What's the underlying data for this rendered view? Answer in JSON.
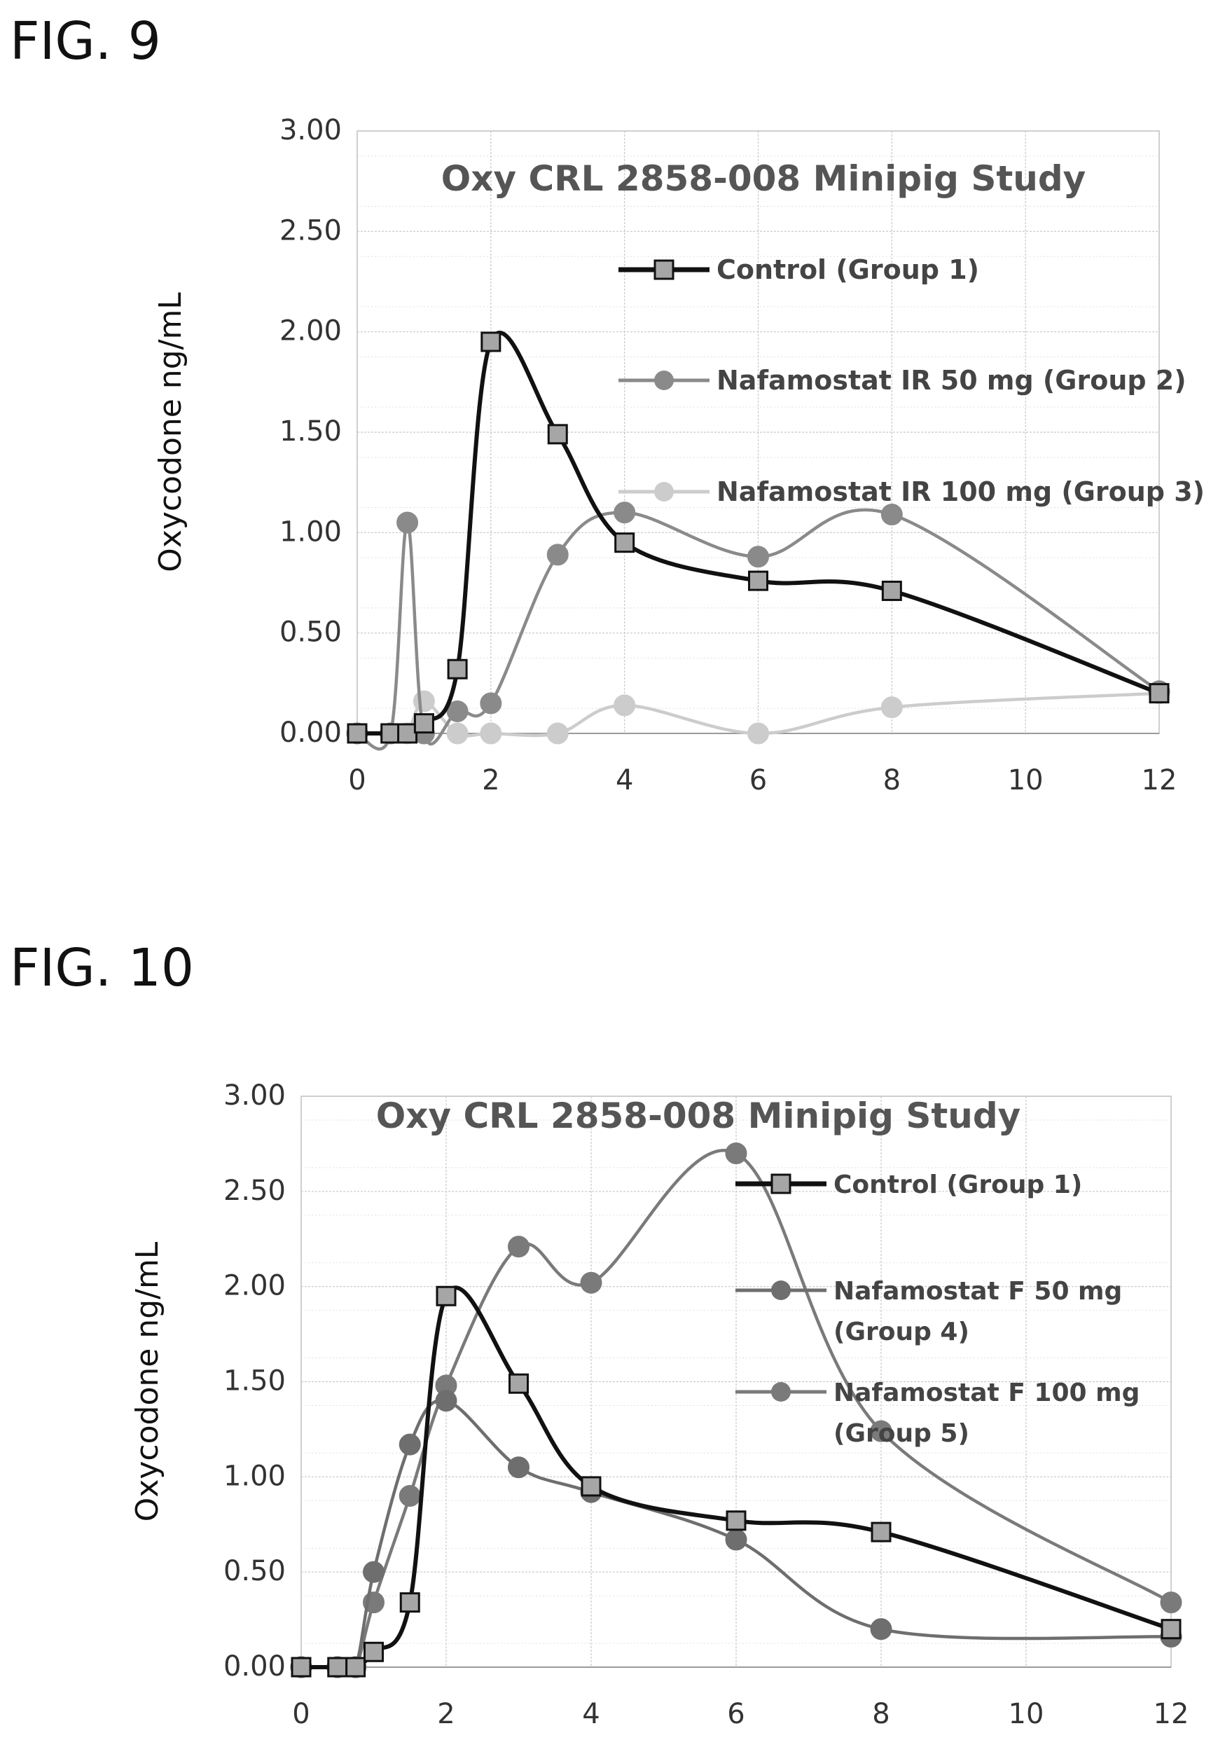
{
  "figures": [
    {
      "label": "FIG. 9"
    },
    {
      "label": "FIG. 10"
    }
  ],
  "chart_data": [
    {
      "type": "line",
      "title": "Oxy CRL 2858-008 Minipig Study",
      "xlabel": "",
      "ylabel": "Oxycodone ng/mL",
      "xlim": [
        0,
        12
      ],
      "ylim": [
        0,
        3
      ],
      "x_ticks": [
        "0",
        "2",
        "4",
        "6",
        "8",
        "10",
        "12"
      ],
      "y_ticks": [
        "0.00",
        "0.50",
        "1.00",
        "1.50",
        "2.00",
        "2.50",
        "3.00"
      ],
      "grid": true,
      "legend_position": "right",
      "series": [
        {
          "name": "Control (Group 1)",
          "color": "#111111",
          "marker": "square",
          "points": [
            [
              0,
              0
            ],
            [
              0.5,
              0
            ],
            [
              0.75,
              0
            ],
            [
              1,
              0.05
            ],
            [
              1.5,
              0.32
            ],
            [
              2,
              1.95
            ],
            [
              3,
              1.49
            ],
            [
              4,
              0.95
            ],
            [
              6,
              0.76
            ],
            [
              8,
              0.71
            ],
            [
              12,
              0.2
            ]
          ]
        },
        {
          "name": "Nafamostat IR 50 mg (Group 2)",
          "color": "#8a8a8a",
          "marker": "circle",
          "points": [
            [
              0,
              0
            ],
            [
              0.5,
              0
            ],
            [
              0.75,
              1.05
            ],
            [
              1,
              0
            ],
            [
              1.5,
              0.11
            ],
            [
              2,
              0.15
            ],
            [
              3,
              0.89
            ],
            [
              4,
              1.1
            ],
            [
              6,
              0.88
            ],
            [
              8,
              1.09
            ],
            [
              12,
              0.21
            ]
          ]
        },
        {
          "name": "Nafamostat IR 100 mg (Group 3)",
          "color": "#cccccc",
          "marker": "circle",
          "points": [
            [
              0,
              0
            ],
            [
              0.5,
              0
            ],
            [
              0.75,
              0
            ],
            [
              1,
              0.16
            ],
            [
              1.5,
              0
            ],
            [
              2,
              0
            ],
            [
              3,
              0
            ],
            [
              4,
              0.14
            ],
            [
              6,
              0
            ],
            [
              8,
              0.13
            ],
            [
              12,
              0.2
            ]
          ]
        }
      ]
    },
    {
      "type": "line",
      "title": "Oxy CRL 2858-008 Minipig Study",
      "xlabel": "",
      "ylabel": "Oxycodone ng/mL",
      "xlim": [
        0,
        12
      ],
      "ylim": [
        0,
        3
      ],
      "x_ticks": [
        "0",
        "2",
        "4",
        "6",
        "8",
        "10",
        "12"
      ],
      "y_ticks": [
        "0.00",
        "0.50",
        "1.00",
        "1.50",
        "2.00",
        "2.50",
        "3.00"
      ],
      "grid": true,
      "legend_position": "right",
      "series": [
        {
          "name": "Control (Group 1)",
          "color": "#111111",
          "marker": "square",
          "points": [
            [
              0,
              0
            ],
            [
              0.5,
              0
            ],
            [
              0.75,
              0
            ],
            [
              1,
              0.08
            ],
            [
              1.5,
              0.34
            ],
            [
              2,
              1.95
            ],
            [
              3,
              1.49
            ],
            [
              4,
              0.95
            ],
            [
              6,
              0.77
            ],
            [
              8,
              0.71
            ],
            [
              12,
              0.2
            ]
          ]
        },
        {
          "name": "Nafamostat F 50 mg\n(Group 4)",
          "color": "#6e6e6e",
          "marker": "circle",
          "points": [
            [
              0,
              0
            ],
            [
              0.5,
              0
            ],
            [
              0.75,
              0
            ],
            [
              1,
              0.5
            ],
            [
              1.5,
              1.17
            ],
            [
              2,
              1.4
            ],
            [
              3,
              1.05
            ],
            [
              4,
              0.92
            ],
            [
              6,
              0.67
            ],
            [
              8,
              0.2
            ],
            [
              12,
              0.16
            ]
          ]
        },
        {
          "name": "Nafamostat F 100 mg\n(Group 5)",
          "color": "#7a7a7a",
          "marker": "circle",
          "points": [
            [
              0,
              0
            ],
            [
              0.5,
              0
            ],
            [
              0.75,
              0
            ],
            [
              1,
              0.34
            ],
            [
              1.5,
              0.9
            ],
            [
              2,
              1.48
            ],
            [
              3,
              2.21
            ],
            [
              4,
              2.02
            ],
            [
              6,
              2.7
            ],
            [
              8,
              1.24
            ],
            [
              12,
              0.34
            ]
          ]
        }
      ]
    }
  ]
}
